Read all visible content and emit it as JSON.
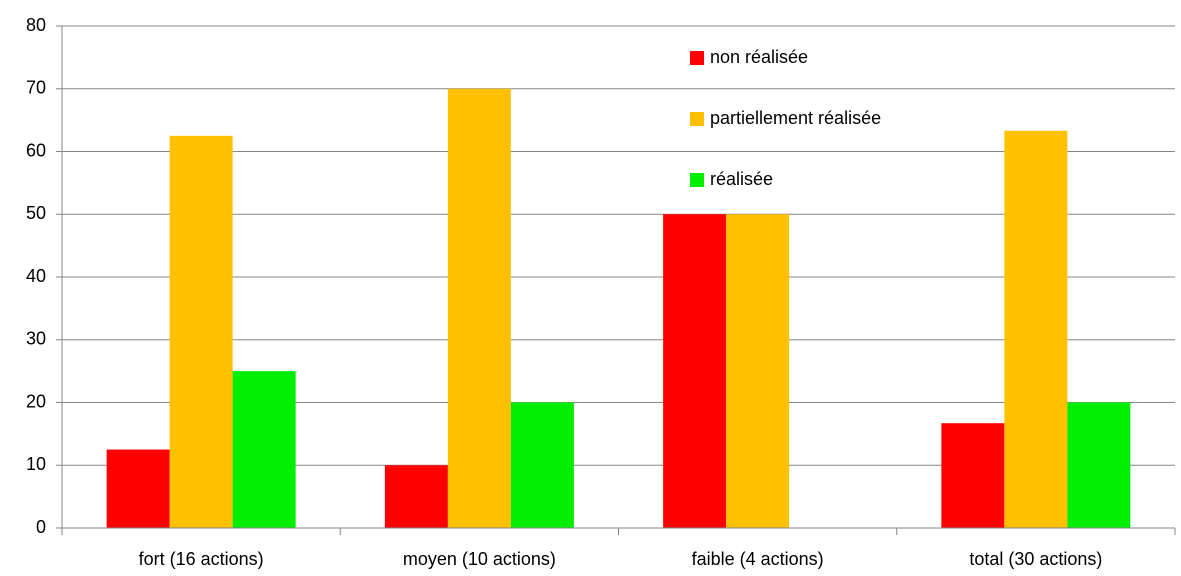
{
  "chart_data": {
    "type": "bar",
    "categories": [
      "fort (16 actions)",
      "moyen (10 actions)",
      "faible (4 actions)",
      "total (30 actions)"
    ],
    "series": [
      {
        "name": "non réalisée",
        "color": "#ff0000",
        "values": [
          12.5,
          10,
          50,
          16.7
        ]
      },
      {
        "name": "partiellement réalisée",
        "color": "#ffc000",
        "values": [
          62.5,
          70,
          50,
          63.3
        ]
      },
      {
        "name": "réalisée",
        "color": "#00ee00",
        "values": [
          25,
          20,
          0,
          20
        ]
      }
    ],
    "ylim": [
      0,
      80
    ],
    "yticks": [
      0,
      10,
      20,
      30,
      40,
      50,
      60,
      70,
      80
    ],
    "grid": true
  }
}
